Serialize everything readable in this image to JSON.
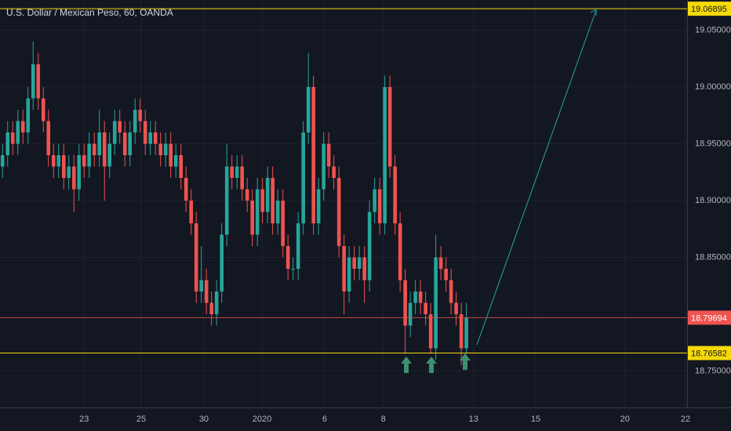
{
  "chart_data": {
    "type": "candlestick",
    "title": "U.S. Dollar / Mexican Peso, 60, OANDA",
    "up_color": "#26a69a",
    "down_color": "#ef5350",
    "grid": true,
    "xlim": [
      0,
      134.8
    ],
    "xticks": [
      {
        "value": 16.5,
        "label": "23"
      },
      {
        "value": 27.7,
        "label": "25"
      },
      {
        "value": 40,
        "label": "30"
      },
      {
        "value": 51.4,
        "label": "2020"
      },
      {
        "value": 63.7,
        "label": "6"
      },
      {
        "value": 75.2,
        "label": "8"
      },
      {
        "value": 92.9,
        "label": "13"
      },
      {
        "value": 105.1,
        "label": "15"
      },
      {
        "value": 122.6,
        "label": "20"
      },
      {
        "value": 134.5,
        "label": "22"
      }
    ],
    "ylim": [
      18.7179,
      19.0766
    ],
    "yticks": [
      {
        "value": 19.05,
        "label": "19.05000"
      },
      {
        "value": 19.0,
        "label": "19.00000"
      },
      {
        "value": 18.95,
        "label": "18.95000"
      },
      {
        "value": 18.9,
        "label": "18.90000"
      },
      {
        "value": 18.85,
        "label": "18.85000"
      },
      {
        "value": 18.75,
        "label": "18.75000"
      }
    ],
    "levels": [
      {
        "value": 19.06895,
        "label": "19.06895",
        "color": "#f5d90a"
      },
      {
        "value": 18.76582,
        "label": "18.76582",
        "color": "#f5d90a"
      }
    ],
    "last_price": {
      "value": 18.79694,
      "label": "18.79694",
      "color": "#ef5350"
    },
    "open": [
      18.93,
      18.94,
      18.96,
      18.95,
      18.97,
      18.96,
      18.99,
      19.02,
      18.99,
      18.97,
      18.94,
      18.93,
      18.94,
      18.92,
      18.93,
      18.91,
      18.94,
      18.93,
      18.95,
      18.94,
      18.96,
      18.93,
      18.95,
      18.97,
      18.96,
      18.94,
      18.96,
      18.98,
      18.97,
      18.95,
      18.96,
      18.95,
      18.94,
      18.95,
      18.93,
      18.94,
      18.92,
      18.9,
      18.88,
      18.82,
      18.83,
      18.81,
      18.8,
      18.82,
      18.87,
      18.93,
      18.92,
      18.93,
      18.91,
      18.9,
      18.87,
      18.91,
      18.89,
      18.92,
      18.88,
      18.9,
      18.86,
      18.84,
      18.84,
      18.88,
      18.96,
      19.0,
      18.88,
      18.91,
      18.95,
      18.93,
      18.92,
      18.86,
      18.82,
      18.85,
      18.84,
      18.85,
      18.83,
      18.89,
      18.91,
      18.88,
      19.0,
      18.93,
      18.88,
      18.83,
      18.79,
      18.81,
      18.82,
      18.81,
      18.8,
      18.77,
      18.85,
      18.84,
      18.83,
      18.81,
      18.8,
      18.77
    ],
    "high": [
      18.95,
      18.97,
      18.97,
      18.98,
      18.98,
      19.0,
      19.04,
      19.03,
      19.0,
      18.98,
      18.95,
      18.95,
      18.95,
      18.94,
      18.94,
      18.95,
      18.95,
      18.96,
      18.96,
      18.98,
      18.97,
      18.96,
      18.98,
      18.98,
      18.97,
      18.97,
      18.99,
      18.99,
      18.98,
      18.97,
      18.97,
      18.96,
      18.96,
      18.96,
      18.95,
      18.95,
      18.93,
      18.91,
      18.89,
      18.86,
      18.84,
      18.82,
      18.83,
      18.88,
      18.95,
      18.94,
      18.94,
      18.94,
      18.92,
      18.91,
      18.92,
      18.92,
      18.93,
      18.93,
      18.91,
      18.91,
      18.87,
      18.85,
      18.89,
      18.97,
      19.03,
      19.01,
      18.92,
      18.96,
      18.96,
      18.94,
      18.93,
      18.87,
      18.86,
      18.86,
      18.86,
      18.86,
      18.9,
      18.92,
      18.92,
      19.01,
      19.01,
      18.94,
      18.89,
      18.84,
      18.82,
      18.83,
      18.83,
      18.82,
      18.81,
      18.87,
      18.86,
      18.85,
      18.84,
      18.82,
      18.81,
      18.81
    ],
    "low": [
      18.92,
      18.93,
      18.94,
      18.94,
      18.95,
      18.95,
      18.98,
      18.98,
      18.96,
      18.93,
      18.92,
      18.92,
      18.91,
      18.91,
      18.89,
      18.9,
      18.92,
      18.92,
      18.93,
      18.93,
      18.9,
      18.92,
      18.94,
      18.95,
      18.93,
      18.93,
      18.95,
      18.96,
      18.94,
      18.94,
      18.94,
      18.93,
      18.93,
      18.92,
      18.92,
      18.91,
      18.89,
      18.87,
      18.81,
      18.81,
      18.8,
      18.79,
      18.79,
      18.81,
      18.86,
      18.91,
      18.91,
      18.9,
      18.89,
      18.86,
      18.86,
      18.88,
      18.88,
      18.87,
      18.87,
      18.85,
      18.83,
      18.83,
      18.83,
      18.87,
      18.95,
      18.87,
      18.87,
      18.9,
      18.92,
      18.91,
      18.85,
      18.8,
      18.81,
      18.83,
      18.83,
      18.81,
      18.82,
      18.88,
      18.87,
      18.87,
      18.92,
      18.87,
      18.82,
      18.765,
      18.78,
      18.8,
      18.8,
      18.79,
      18.765,
      18.76,
      18.83,
      18.82,
      18.8,
      18.79,
      18.755,
      18.765
    ],
    "close": [
      18.94,
      18.96,
      18.95,
      18.97,
      18.96,
      18.99,
      19.02,
      18.99,
      18.97,
      18.94,
      18.93,
      18.94,
      18.92,
      18.93,
      18.91,
      18.94,
      18.93,
      18.95,
      18.94,
      18.96,
      18.93,
      18.95,
      18.97,
      18.96,
      18.94,
      18.96,
      18.98,
      18.97,
      18.95,
      18.96,
      18.95,
      18.94,
      18.95,
      18.93,
      18.94,
      18.92,
      18.9,
      18.88,
      18.82,
      18.83,
      18.81,
      18.8,
      18.82,
      18.87,
      18.93,
      18.92,
      18.93,
      18.91,
      18.9,
      18.87,
      18.91,
      18.89,
      18.92,
      18.88,
      18.9,
      18.86,
      18.84,
      18.84,
      18.88,
      18.96,
      19.0,
      18.88,
      18.91,
      18.95,
      18.93,
      18.92,
      18.86,
      18.82,
      18.85,
      18.84,
      18.85,
      18.83,
      18.89,
      18.91,
      18.88,
      19.0,
      18.93,
      18.88,
      18.83,
      18.79,
      18.81,
      18.82,
      18.81,
      18.8,
      18.77,
      18.85,
      18.84,
      18.83,
      18.81,
      18.8,
      18.77,
      18.797
    ]
  }
}
